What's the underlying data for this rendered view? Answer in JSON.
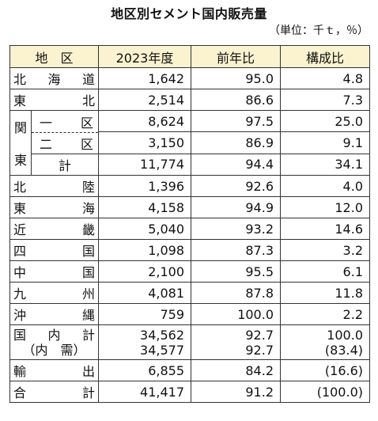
{
  "title": "地区別セメント国内販売量",
  "unit": "（単位：千ｔ，％）",
  "headers": {
    "region": "地　区",
    "year": "2023年度",
    "prev": "前年比",
    "share": "構成比"
  },
  "rows": {
    "hokkaido": {
      "name": [
        "北",
        "海",
        "道"
      ],
      "y": "1,642",
      "p": "95.0",
      "s": "4.8"
    },
    "tohoku": {
      "name": [
        "東",
        "北"
      ],
      "y": "2,514",
      "p": "86.6",
      "s": "7.3"
    },
    "kanto_label": [
      "関",
      "東"
    ],
    "kanto1": {
      "name": [
        "一",
        "区"
      ],
      "y": "8,624",
      "p": "97.5",
      "s": "25.0"
    },
    "kanto2": {
      "name": [
        "二",
        "区"
      ],
      "y": "3,150",
      "p": "86.9",
      "s": "9.1"
    },
    "kanto_total": {
      "name": "計",
      "y": "11,774",
      "p": "94.4",
      "s": "34.1"
    },
    "hokuriku": {
      "name": [
        "北",
        "陸"
      ],
      "y": "1,396",
      "p": "92.6",
      "s": "4.0"
    },
    "tokai": {
      "name": [
        "東",
        "海"
      ],
      "y": "4,158",
      "p": "94.9",
      "s": "12.0"
    },
    "kinki": {
      "name": [
        "近",
        "畿"
      ],
      "y": "5,040",
      "p": "93.2",
      "s": "14.6"
    },
    "shikoku": {
      "name": [
        "四",
        "国"
      ],
      "y": "1,098",
      "p": "87.3",
      "s": "3.2"
    },
    "chugoku": {
      "name": [
        "中",
        "国"
      ],
      "y": "2,100",
      "p": "95.5",
      "s": "6.1"
    },
    "kyushu": {
      "name": [
        "九",
        "州"
      ],
      "y": "4,081",
      "p": "87.8",
      "s": "11.8"
    },
    "okinawa": {
      "name": [
        "沖",
        "縄"
      ],
      "y": "759",
      "p": "100.0",
      "s": "2.2"
    },
    "domestic": {
      "name": [
        "国",
        "内",
        "計"
      ],
      "name2": "（内　需）",
      "y": "34,562",
      "y2": "34,577",
      "p": "92.7",
      "p2": "92.7",
      "s": "100.0",
      "s2": "(83.4)"
    },
    "export": {
      "name": [
        "輸",
        "出"
      ],
      "y": "6,855",
      "p": "84.2",
      "s": "(16.6)"
    },
    "total": {
      "name": [
        "合",
        "計"
      ],
      "y": "41,417",
      "p": "91.2",
      "s": "(100.0)"
    }
  }
}
